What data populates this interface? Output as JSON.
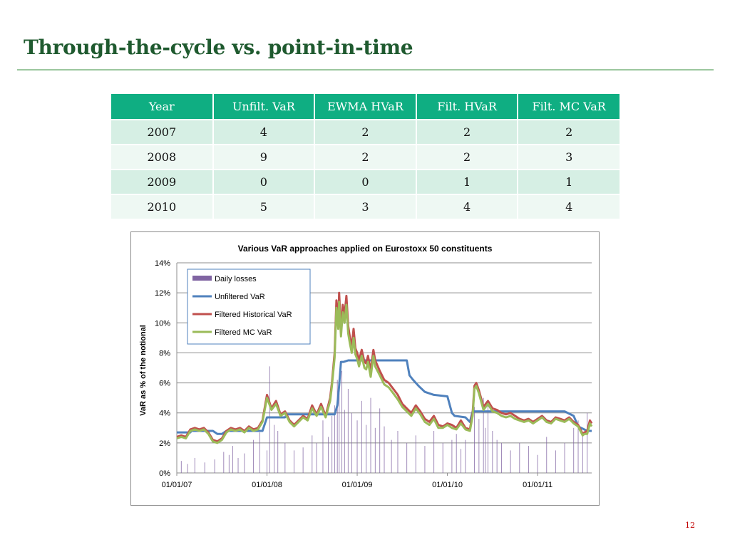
{
  "slide": {
    "title": "Through-the-cycle vs. point-in-time",
    "page_number": "12"
  },
  "table": {
    "headers": [
      "Year",
      "Unfilt. VaR",
      "EWMA HVaR",
      "Filt. HVaR",
      "Filt. MC VaR"
    ],
    "rows": [
      [
        "2007",
        "4",
        "2",
        "2",
        "2"
      ],
      [
        "2008",
        "9",
        "2",
        "2",
        "3"
      ],
      [
        "2009",
        "0",
        "0",
        "1",
        "1"
      ],
      [
        "2010",
        "5",
        "3",
        "4",
        "4"
      ]
    ]
  },
  "chart_data": {
    "type": "line",
    "title": "Various VaR approaches applied on Eurostoxx 50 constituents",
    "ylabel": "VaR as % of the notional",
    "xlabel": "",
    "ylim": [
      0,
      14
    ],
    "yticks": [
      "0%",
      "2%",
      "4%",
      "6%",
      "8%",
      "10%",
      "12%",
      "14%"
    ],
    "xticks": [
      "01/01/07",
      "01/01/08",
      "01/01/09",
      "01/01/10",
      "01/01/11"
    ],
    "xlim_years": [
      2007.0,
      2011.6
    ],
    "grid": true,
    "legend_position": "top-left",
    "colors": {
      "daily_losses": "#8064a2",
      "unfiltered": "#4f81bd",
      "filtered_hist": "#c0504d",
      "filtered_mc": "#9bbb59"
    },
    "series": [
      {
        "name": "Daily losses",
        "kind": "bar",
        "x": [
          2007.05,
          2007.12,
          2007.2,
          2007.31,
          2007.42,
          2007.52,
          2007.58,
          2007.62,
          2007.68,
          2007.75,
          2007.85,
          2007.92,
          2008.0,
          2008.03,
          2008.08,
          2008.12,
          2008.2,
          2008.3,
          2008.4,
          2008.5,
          2008.55,
          2008.62,
          2008.68,
          2008.72,
          2008.75,
          2008.78,
          2008.8,
          2008.83,
          2008.86,
          2008.9,
          2008.94,
          2009.0,
          2009.05,
          2009.1,
          2009.15,
          2009.2,
          2009.25,
          2009.3,
          2009.38,
          2009.45,
          2009.55,
          2009.65,
          2009.75,
          2009.85,
          2009.95,
          2010.05,
          2010.1,
          2010.15,
          2010.2,
          2010.3,
          2010.35,
          2010.4,
          2010.42,
          2010.45,
          2010.5,
          2010.55,
          2010.6,
          2010.7,
          2010.8,
          2010.9,
          2011.0,
          2011.1,
          2011.2,
          2011.3,
          2011.4,
          2011.45,
          2011.5,
          2011.55
        ],
        "values": [
          0.8,
          0.6,
          1.0,
          0.7,
          0.9,
          1.4,
          1.2,
          1.8,
          1.0,
          1.3,
          2.2,
          2.7,
          1.5,
          7.1,
          3.2,
          2.8,
          2.0,
          1.5,
          1.7,
          2.5,
          2.0,
          3.5,
          2.4,
          3.8,
          4.5,
          6.2,
          5.3,
          6.8,
          4.2,
          5.6,
          4.0,
          3.5,
          4.8,
          3.2,
          5.0,
          3.0,
          4.3,
          3.1,
          2.2,
          2.8,
          2.0,
          2.5,
          1.8,
          2.8,
          2.0,
          2.2,
          2.6,
          1.6,
          2.2,
          4.4,
          3.6,
          5.0,
          3.0,
          4.5,
          2.8,
          2.2,
          2.0,
          1.5,
          2.0,
          1.8,
          1.2,
          2.4,
          1.5,
          2.0,
          3.0,
          3.5,
          2.6,
          4.0
        ]
      },
      {
        "name": "Unfiltered VaR",
        "kind": "line",
        "x": [
          2007.0,
          2007.15,
          2007.16,
          2007.4,
          2007.45,
          2007.5,
          2007.55,
          2007.95,
          2008.0,
          2008.2,
          2008.22,
          2008.75,
          2008.78,
          2008.8,
          2008.82,
          2008.85,
          2008.9,
          2009.0,
          2009.1,
          2009.55,
          2009.58,
          2009.62,
          2009.68,
          2009.75,
          2009.85,
          2010.0,
          2010.05,
          2010.08,
          2010.2,
          2010.25,
          2010.28,
          2011.0,
          2011.3,
          2011.4,
          2011.45,
          2011.55,
          2011.6
        ],
        "values": [
          2.7,
          2.7,
          2.8,
          2.8,
          2.6,
          2.6,
          2.8,
          2.8,
          3.7,
          3.7,
          3.9,
          3.9,
          4.5,
          5.8,
          7.4,
          7.4,
          7.5,
          7.5,
          7.5,
          7.5,
          6.5,
          6.2,
          5.8,
          5.4,
          5.2,
          5.1,
          4.0,
          3.8,
          3.7,
          3.4,
          4.1,
          4.1,
          4.1,
          3.8,
          3.1,
          2.8,
          2.8
        ]
      },
      {
        "name": "Filtered Historical VaR",
        "kind": "line",
        "x": [
          2007.0,
          2007.05,
          2007.1,
          2007.15,
          2007.2,
          2007.25,
          2007.3,
          2007.35,
          2007.4,
          2007.45,
          2007.5,
          2007.55,
          2007.6,
          2007.65,
          2007.7,
          2007.75,
          2007.8,
          2007.85,
          2007.9,
          2007.95,
          2008.0,
          2008.05,
          2008.1,
          2008.15,
          2008.2,
          2008.25,
          2008.3,
          2008.35,
          2008.4,
          2008.45,
          2008.5,
          2008.55,
          2008.6,
          2008.65,
          2008.7,
          2008.72,
          2008.75,
          2008.77,
          2008.79,
          2008.8,
          2008.82,
          2008.84,
          2008.86,
          2008.88,
          2008.9,
          2008.92,
          2008.94,
          2008.96,
          2008.98,
          2009.0,
          2009.02,
          2009.05,
          2009.08,
          2009.1,
          2009.12,
          2009.15,
          2009.18,
          2009.2,
          2009.25,
          2009.3,
          2009.35,
          2009.4,
          2009.45,
          2009.5,
          2009.55,
          2009.6,
          2009.65,
          2009.7,
          2009.75,
          2009.8,
          2009.85,
          2009.9,
          2009.95,
          2010.0,
          2010.05,
          2010.1,
          2010.15,
          2010.2,
          2010.25,
          2010.28,
          2010.3,
          2010.32,
          2010.35,
          2010.4,
          2010.45,
          2010.5,
          2010.55,
          2010.6,
          2010.65,
          2010.7,
          2010.75,
          2010.8,
          2010.85,
          2010.9,
          2010.95,
          2011.0,
          2011.05,
          2011.1,
          2011.15,
          2011.2,
          2011.25,
          2011.3,
          2011.35,
          2011.4,
          2011.45,
          2011.5,
          2011.52,
          2011.55,
          2011.58,
          2011.6
        ],
        "values": [
          2.4,
          2.5,
          2.4,
          2.9,
          3.0,
          2.9,
          3.0,
          2.7,
          2.2,
          2.1,
          2.3,
          2.8,
          3.0,
          2.9,
          3.0,
          2.8,
          3.1,
          2.9,
          3.0,
          3.5,
          5.2,
          4.3,
          4.8,
          3.9,
          4.1,
          3.5,
          3.2,
          3.5,
          3.8,
          3.6,
          4.5,
          3.9,
          4.6,
          3.8,
          5.0,
          6.0,
          8.0,
          11.5,
          10.0,
          12.0,
          9.5,
          11.2,
          10.5,
          11.8,
          9.8,
          9.0,
          8.5,
          9.6,
          8.3,
          8.0,
          7.5,
          8.2,
          7.4,
          7.3,
          7.8,
          6.8,
          8.2,
          7.5,
          6.8,
          6.2,
          6.0,
          5.6,
          5.2,
          4.6,
          4.3,
          4.0,
          4.5,
          4.1,
          3.6,
          3.4,
          3.8,
          3.2,
          3.1,
          3.3,
          3.2,
          3.0,
          3.5,
          3.0,
          2.9,
          4.0,
          5.8,
          6.0,
          5.5,
          4.4,
          4.8,
          4.3,
          4.2,
          4.0,
          3.9,
          4.0,
          3.8,
          3.6,
          3.5,
          3.6,
          3.4,
          3.6,
          3.8,
          3.5,
          3.4,
          3.7,
          3.6,
          3.5,
          3.7,
          3.4,
          3.2,
          2.6,
          2.7,
          2.8,
          3.5,
          3.3
        ]
      },
      {
        "name": "Filtered MC VaR",
        "kind": "line",
        "x": [
          2007.0,
          2007.05,
          2007.1,
          2007.15,
          2007.2,
          2007.25,
          2007.3,
          2007.35,
          2007.4,
          2007.45,
          2007.5,
          2007.55,
          2007.6,
          2007.65,
          2007.7,
          2007.75,
          2007.8,
          2007.85,
          2007.9,
          2007.95,
          2008.0,
          2008.05,
          2008.1,
          2008.15,
          2008.2,
          2008.25,
          2008.3,
          2008.35,
          2008.4,
          2008.45,
          2008.5,
          2008.55,
          2008.6,
          2008.65,
          2008.7,
          2008.72,
          2008.75,
          2008.77,
          2008.79,
          2008.8,
          2008.82,
          2008.84,
          2008.86,
          2008.88,
          2008.9,
          2008.92,
          2008.94,
          2008.96,
          2008.98,
          2009.0,
          2009.02,
          2009.05,
          2009.08,
          2009.1,
          2009.12,
          2009.15,
          2009.18,
          2009.2,
          2009.25,
          2009.3,
          2009.35,
          2009.4,
          2009.45,
          2009.5,
          2009.55,
          2009.6,
          2009.65,
          2009.7,
          2009.75,
          2009.8,
          2009.85,
          2009.9,
          2009.95,
          2010.0,
          2010.05,
          2010.1,
          2010.15,
          2010.2,
          2010.25,
          2010.28,
          2010.3,
          2010.32,
          2010.35,
          2010.4,
          2010.45,
          2010.5,
          2010.55,
          2010.6,
          2010.65,
          2010.7,
          2010.75,
          2010.8,
          2010.85,
          2010.9,
          2010.95,
          2011.0,
          2011.05,
          2011.1,
          2011.15,
          2011.2,
          2011.25,
          2011.3,
          2011.35,
          2011.4,
          2011.45,
          2011.5,
          2011.52,
          2011.55,
          2011.58,
          2011.6
        ],
        "values": [
          2.3,
          2.4,
          2.3,
          2.8,
          2.9,
          2.8,
          2.9,
          2.6,
          2.1,
          2.0,
          2.2,
          2.7,
          2.9,
          2.8,
          2.9,
          2.7,
          3.0,
          2.8,
          2.9,
          3.4,
          5.0,
          4.2,
          4.6,
          3.8,
          4.0,
          3.4,
          3.1,
          3.4,
          3.7,
          3.5,
          4.3,
          3.8,
          4.4,
          3.7,
          4.8,
          5.8,
          7.7,
          11.0,
          9.6,
          11.4,
          9.1,
          10.7,
          10.0,
          11.2,
          9.3,
          8.6,
          8.0,
          9.0,
          7.9,
          7.6,
          7.1,
          7.8,
          7.0,
          6.9,
          7.4,
          6.4,
          7.8,
          7.1,
          6.5,
          5.9,
          5.7,
          5.3,
          4.9,
          4.4,
          4.1,
          3.8,
          4.3,
          3.9,
          3.4,
          3.2,
          3.6,
          3.0,
          3.0,
          3.2,
          3.0,
          2.9,
          3.3,
          2.9,
          2.8,
          3.8,
          5.6,
          5.8,
          5.3,
          4.2,
          4.6,
          4.1,
          4.0,
          3.8,
          3.7,
          3.8,
          3.6,
          3.5,
          3.4,
          3.5,
          3.3,
          3.5,
          3.7,
          3.4,
          3.3,
          3.6,
          3.5,
          3.4,
          3.6,
          3.3,
          3.1,
          2.5,
          2.6,
          2.6,
          3.3,
          3.1
        ]
      }
    ]
  }
}
